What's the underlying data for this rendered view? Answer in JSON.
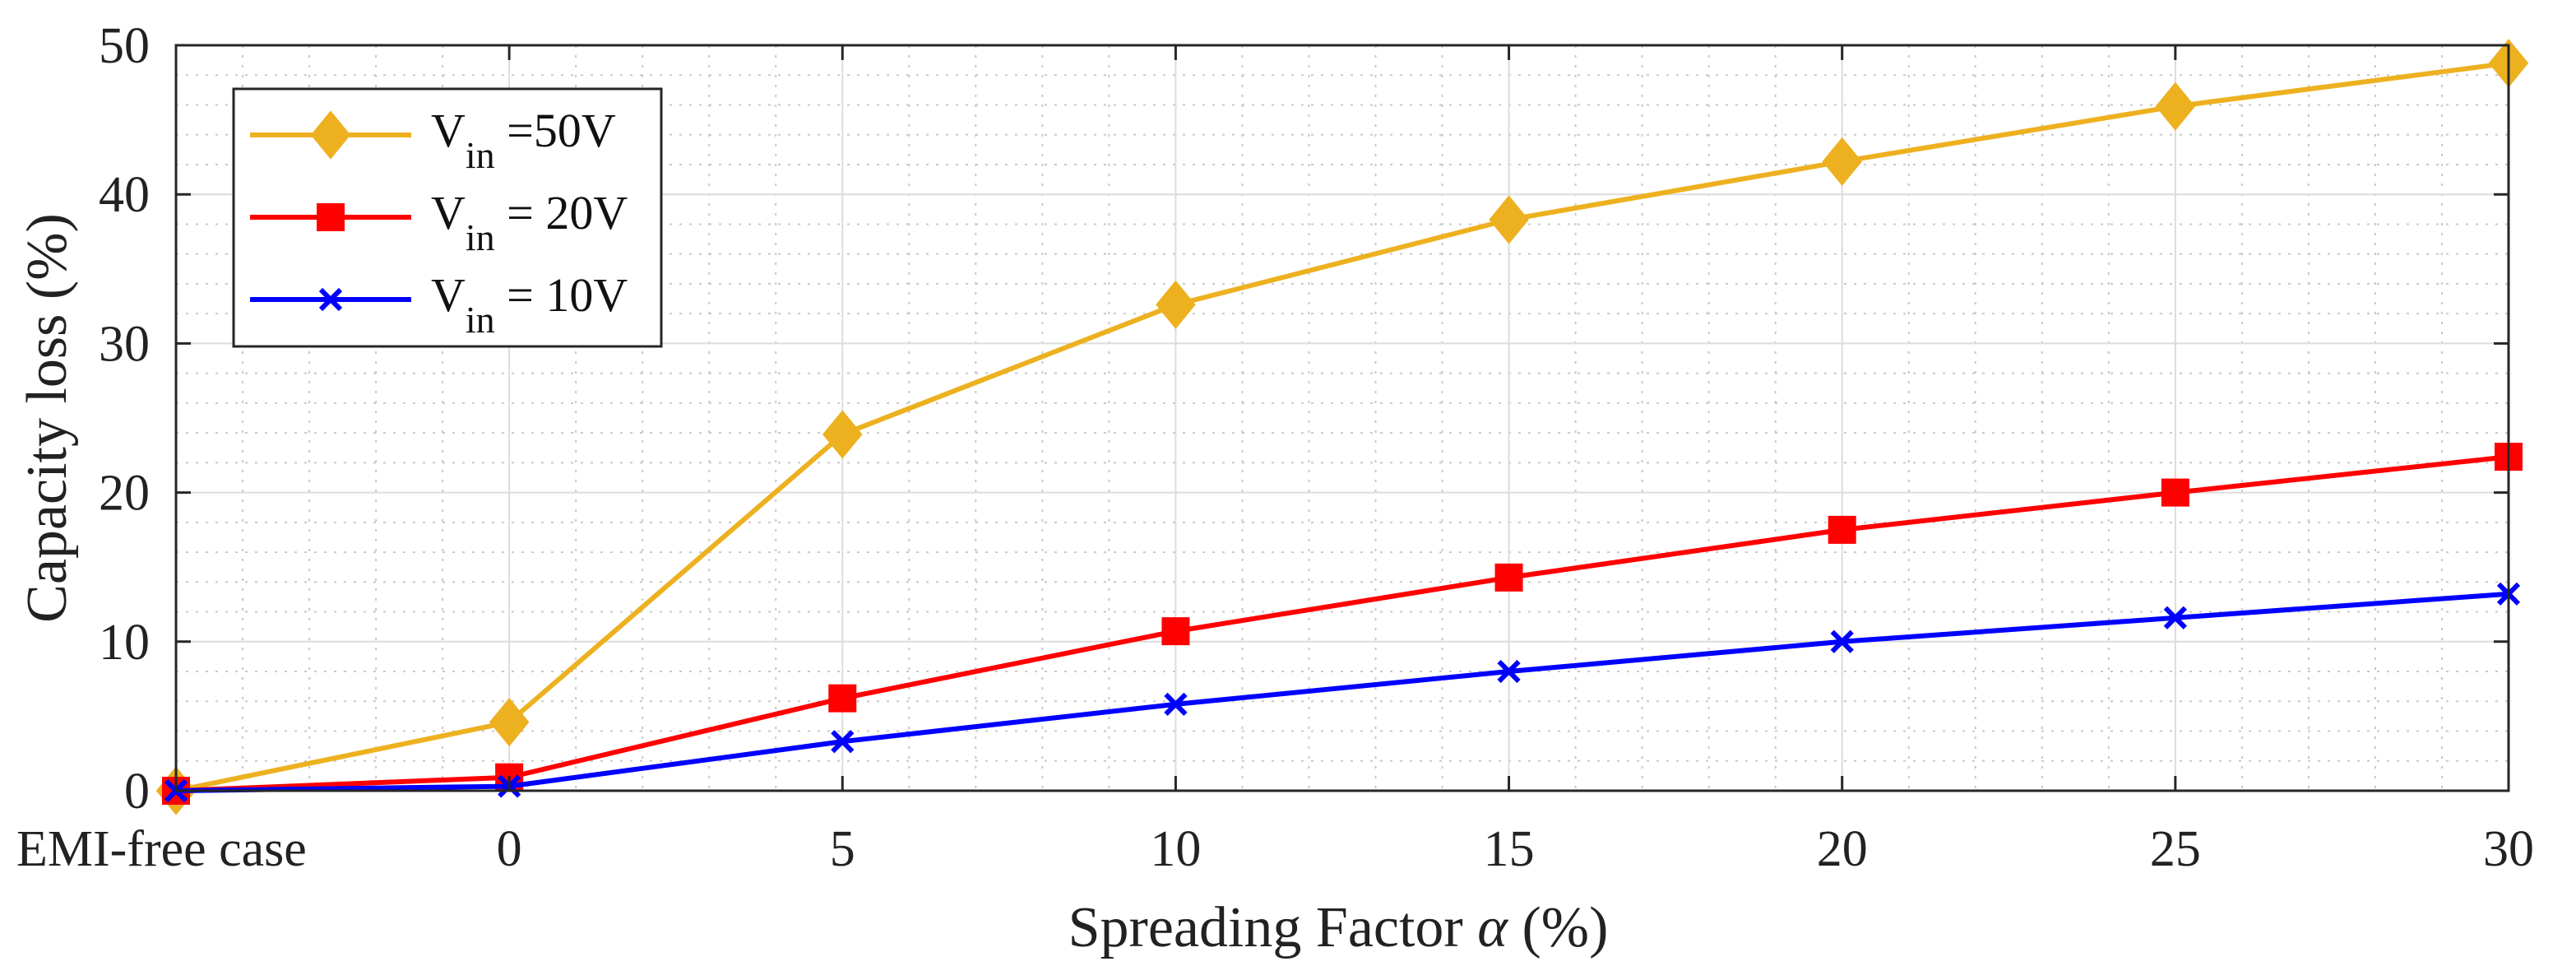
{
  "chart_data": {
    "type": "line",
    "title": "",
    "xlabel": "Spreading Factor",
    "xlabel_symbol": "α",
    "xlabel_unit": "(%)",
    "ylabel": "Capacity loss (%)",
    "categories": [
      "EMI-free case",
      "0",
      "5",
      "10",
      "15",
      "20",
      "25",
      "30"
    ],
    "ylim": [
      0,
      50
    ],
    "yticks": [
      "0",
      "10",
      "20",
      "30",
      "40",
      "50"
    ],
    "grid": true,
    "legend_position": "top-left",
    "series": [
      {
        "name": "V_in =50V",
        "legend_main": "V",
        "legend_sub": "in",
        "legend_rest": "=50V",
        "color": "#EDB120",
        "marker": "diamond",
        "values": [
          0,
          4.6,
          23.9,
          32.6,
          38.3,
          42.2,
          45.9,
          48.8
        ]
      },
      {
        "name": "V_in = 20V",
        "legend_main": "V",
        "legend_sub": "in",
        "legend_rest": "= 20V",
        "color": "#FF0000",
        "marker": "square",
        "values": [
          0,
          0.9,
          6.2,
          10.7,
          14.3,
          17.5,
          20.0,
          22.4
        ]
      },
      {
        "name": "V_in = 10V",
        "legend_main": "V",
        "legend_sub": "in",
        "legend_rest": "= 10V",
        "color": "#0000FF",
        "marker": "x",
        "values": [
          0,
          0.3,
          3.3,
          5.8,
          8.0,
          10.0,
          11.6,
          13.2
        ]
      }
    ]
  }
}
